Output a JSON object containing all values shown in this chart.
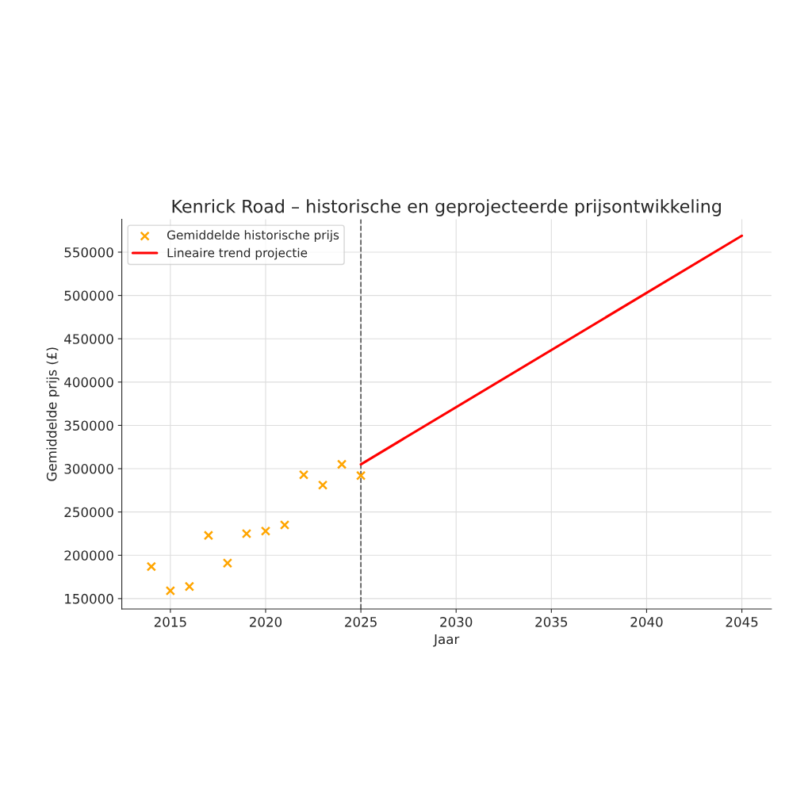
{
  "chart_data": {
    "type": "scatter",
    "title": "Kenrick Road – historische en geprojecteerde prijsontwikkeling",
    "xlabel": "Jaar",
    "ylabel": "Gemiddelde prijs (£)",
    "series": [
      {
        "name": "Gemiddelde historische prijs",
        "color": "#ffa500",
        "marker": "cross",
        "x": [
          2014,
          2015,
          2016,
          2017,
          2018,
          2019,
          2020,
          2021,
          2022,
          2023,
          2024,
          2025
        ],
        "values": [
          187000,
          159000,
          164000,
          223000,
          191000,
          225000,
          228000,
          235000,
          293000,
          281000,
          305000,
          292000
        ]
      },
      {
        "name": "Lineaire trend projectie",
        "type": "line",
        "color": "#ff0000",
        "line_style": "solid",
        "x": [
          2025,
          2045
        ],
        "values": [
          305000,
          569000
        ]
      }
    ],
    "xlim": [
      2012.45,
      2046.55
    ],
    "ylim": [
      138000,
      588000
    ],
    "xticks": [
      2015,
      2020,
      2025,
      2030,
      2035,
      2040,
      2045
    ],
    "yticks": [
      150000,
      200000,
      250000,
      300000,
      350000,
      400000,
      450000,
      500000,
      550000
    ],
    "ref_lines": [
      {
        "axis": "x",
        "value": 2025,
        "color": "#555555",
        "line_style": "dashed"
      }
    ],
    "grid": true,
    "legend": "top left"
  }
}
